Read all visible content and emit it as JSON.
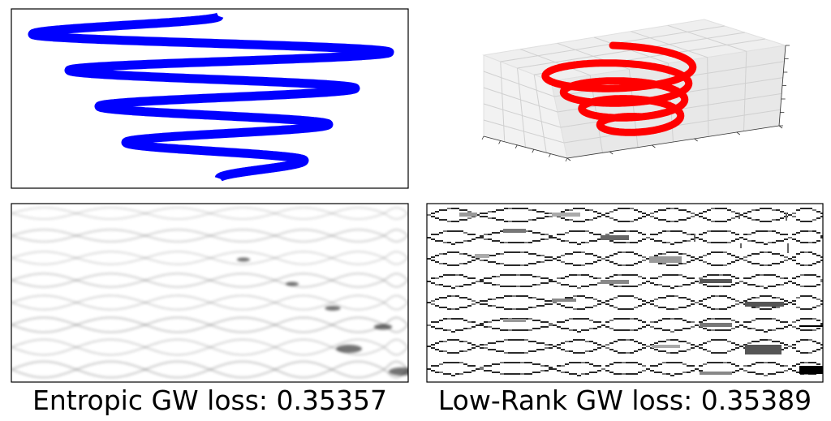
{
  "chart_data": [
    {
      "type": "line",
      "panel": "top-left",
      "description_series": "2D zigzag curve",
      "x_range": [
        0,
        1
      ],
      "y_range": [
        0,
        1
      ],
      "color": "#0000ff",
      "turns": 8,
      "axes": false
    },
    {
      "type": "line",
      "panel": "top-right",
      "projection": "3d",
      "color": "#ff0000",
      "loops": 4,
      "grid": true
    },
    {
      "type": "heatmap",
      "panel": "bottom-left",
      "title": "",
      "caption": "Entropic GW loss: 0.35357",
      "colormap": "gray_r",
      "style": "smooth"
    },
    {
      "type": "heatmap",
      "panel": "bottom-right",
      "title": "",
      "caption": "Low-Rank GW loss: 0.35389",
      "colormap": "gray_r",
      "style": "blocky"
    }
  ],
  "captions": {
    "left": "Entropic GW loss: 0.35357",
    "right": "Low-Rank GW loss: 0.35389"
  },
  "colors": {
    "curve2d": "#0000ff",
    "curve3d": "#ff0000",
    "frame": "#000000",
    "grid3d": "#d0d0d0",
    "pane3d": "#f2f2f2"
  }
}
